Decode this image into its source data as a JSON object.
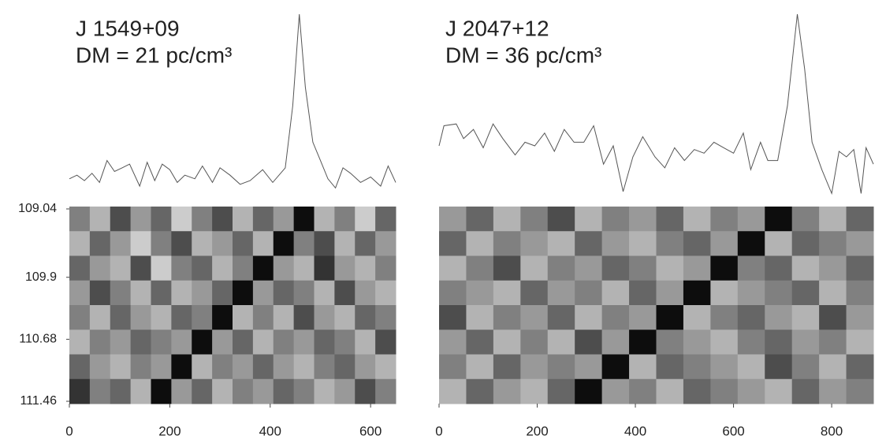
{
  "chart_data": [
    {
      "type": "heatmap",
      "title": "J 1549+09",
      "subtitle": "DM = 21 pc/cm³",
      "profile": {
        "x": [
          0,
          15,
          30,
          45,
          60,
          75,
          90,
          105,
          120,
          140,
          155,
          170,
          185,
          200,
          215,
          230,
          250,
          265,
          285,
          300,
          320,
          340,
          360,
          385,
          405,
          430,
          445,
          458,
          470,
          485,
          500,
          515,
          530,
          545,
          560,
          580,
          600,
          620,
          635,
          650
        ],
        "values": [
          0.1,
          0.12,
          0.09,
          0.13,
          0.08,
          0.2,
          0.14,
          0.16,
          0.18,
          0.06,
          0.19,
          0.09,
          0.18,
          0.15,
          0.08,
          0.12,
          0.1,
          0.17,
          0.08,
          0.16,
          0.12,
          0.07,
          0.09,
          0.15,
          0.08,
          0.16,
          0.5,
          1.0,
          0.6,
          0.3,
          0.2,
          0.1,
          0.05,
          0.16,
          0.13,
          0.08,
          0.11,
          0.06,
          0.17,
          0.08
        ]
      },
      "z": [
        [
          0.5,
          0.3,
          0.7,
          0.4,
          0.6,
          0.2,
          0.5,
          0.7,
          0.3,
          0.6,
          0.4,
          0.95,
          0.3,
          0.5,
          0.2,
          0.6
        ],
        [
          0.3,
          0.6,
          0.4,
          0.2,
          0.5,
          0.7,
          0.3,
          0.4,
          0.6,
          0.3,
          0.95,
          0.5,
          0.7,
          0.3,
          0.6,
          0.4
        ],
        [
          0.6,
          0.4,
          0.3,
          0.7,
          0.2,
          0.5,
          0.6,
          0.3,
          0.5,
          0.95,
          0.4,
          0.3,
          0.8,
          0.4,
          0.3,
          0.5
        ],
        [
          0.4,
          0.7,
          0.5,
          0.3,
          0.6,
          0.3,
          0.4,
          0.6,
          0.95,
          0.4,
          0.6,
          0.5,
          0.3,
          0.7,
          0.4,
          0.3
        ],
        [
          0.5,
          0.3,
          0.6,
          0.4,
          0.3,
          0.6,
          0.5,
          0.95,
          0.3,
          0.5,
          0.3,
          0.7,
          0.4,
          0.3,
          0.6,
          0.5
        ],
        [
          0.3,
          0.5,
          0.4,
          0.6,
          0.5,
          0.4,
          0.95,
          0.4,
          0.6,
          0.3,
          0.5,
          0.4,
          0.6,
          0.5,
          0.3,
          0.7
        ],
        [
          0.6,
          0.4,
          0.3,
          0.5,
          0.4,
          0.95,
          0.3,
          0.5,
          0.4,
          0.6,
          0.4,
          0.3,
          0.5,
          0.6,
          0.4,
          0.3
        ],
        [
          0.8,
          0.5,
          0.6,
          0.3,
          0.95,
          0.4,
          0.6,
          0.3,
          0.5,
          0.4,
          0.6,
          0.5,
          0.3,
          0.4,
          0.7,
          0.5
        ]
      ],
      "xlim": [
        0,
        650
      ],
      "xticks": [
        0,
        200,
        400,
        600
      ],
      "ylim": [
        109.04,
        111.46
      ],
      "yticks": [
        109.04,
        109.9,
        110.68,
        111.46
      ]
    },
    {
      "type": "heatmap",
      "title": "J 2047+12",
      "subtitle": "DM = 36 pc/cm³",
      "profile": {
        "x": [
          0,
          10,
          35,
          50,
          70,
          90,
          110,
          130,
          155,
          175,
          195,
          215,
          235,
          255,
          275,
          295,
          315,
          335,
          355,
          375,
          395,
          415,
          440,
          460,
          480,
          500,
          520,
          540,
          560,
          580,
          600,
          620,
          635,
          655,
          670,
          690,
          710,
          730,
          745,
          760,
          780,
          800,
          815,
          830,
          845,
          860,
          870,
          885
        ],
        "values": [
          0.28,
          0.39,
          0.4,
          0.32,
          0.37,
          0.27,
          0.4,
          0.32,
          0.23,
          0.3,
          0.28,
          0.35,
          0.25,
          0.37,
          0.3,
          0.3,
          0.39,
          0.18,
          0.28,
          0.03,
          0.22,
          0.33,
          0.22,
          0.16,
          0.27,
          0.2,
          0.26,
          0.24,
          0.3,
          0.27,
          0.24,
          0.35,
          0.15,
          0.3,
          0.2,
          0.2,
          0.5,
          1.0,
          0.7,
          0.3,
          0.15,
          0.02,
          0.25,
          0.22,
          0.26,
          0.02,
          0.27,
          0.18
        ]
      },
      "z": [
        [
          0.4,
          0.6,
          0.3,
          0.5,
          0.7,
          0.3,
          0.5,
          0.4,
          0.6,
          0.3,
          0.5,
          0.4,
          0.95,
          0.5,
          0.3,
          0.6
        ],
        [
          0.6,
          0.3,
          0.5,
          0.4,
          0.3,
          0.6,
          0.4,
          0.3,
          0.5,
          0.6,
          0.4,
          0.95,
          0.3,
          0.6,
          0.5,
          0.4
        ],
        [
          0.3,
          0.5,
          0.7,
          0.3,
          0.5,
          0.4,
          0.6,
          0.5,
          0.3,
          0.4,
          0.95,
          0.5,
          0.6,
          0.3,
          0.4,
          0.6
        ],
        [
          0.5,
          0.4,
          0.3,
          0.6,
          0.4,
          0.5,
          0.3,
          0.6,
          0.4,
          0.95,
          0.3,
          0.4,
          0.5,
          0.6,
          0.3,
          0.5
        ],
        [
          0.7,
          0.3,
          0.5,
          0.4,
          0.6,
          0.3,
          0.5,
          0.4,
          0.95,
          0.3,
          0.5,
          0.6,
          0.4,
          0.3,
          0.7,
          0.4
        ],
        [
          0.4,
          0.6,
          0.3,
          0.5,
          0.3,
          0.7,
          0.4,
          0.95,
          0.5,
          0.4,
          0.3,
          0.5,
          0.6,
          0.4,
          0.5,
          0.3
        ],
        [
          0.5,
          0.3,
          0.6,
          0.4,
          0.5,
          0.4,
          0.95,
          0.3,
          0.6,
          0.5,
          0.4,
          0.3,
          0.7,
          0.5,
          0.3,
          0.6
        ],
        [
          0.3,
          0.6,
          0.4,
          0.3,
          0.6,
          0.95,
          0.4,
          0.5,
          0.3,
          0.6,
          0.5,
          0.4,
          0.3,
          0.6,
          0.4,
          0.5
        ]
      ],
      "xlim": [
        0,
        885
      ],
      "xticks": [
        0,
        200,
        400,
        600,
        800
      ]
    }
  ]
}
